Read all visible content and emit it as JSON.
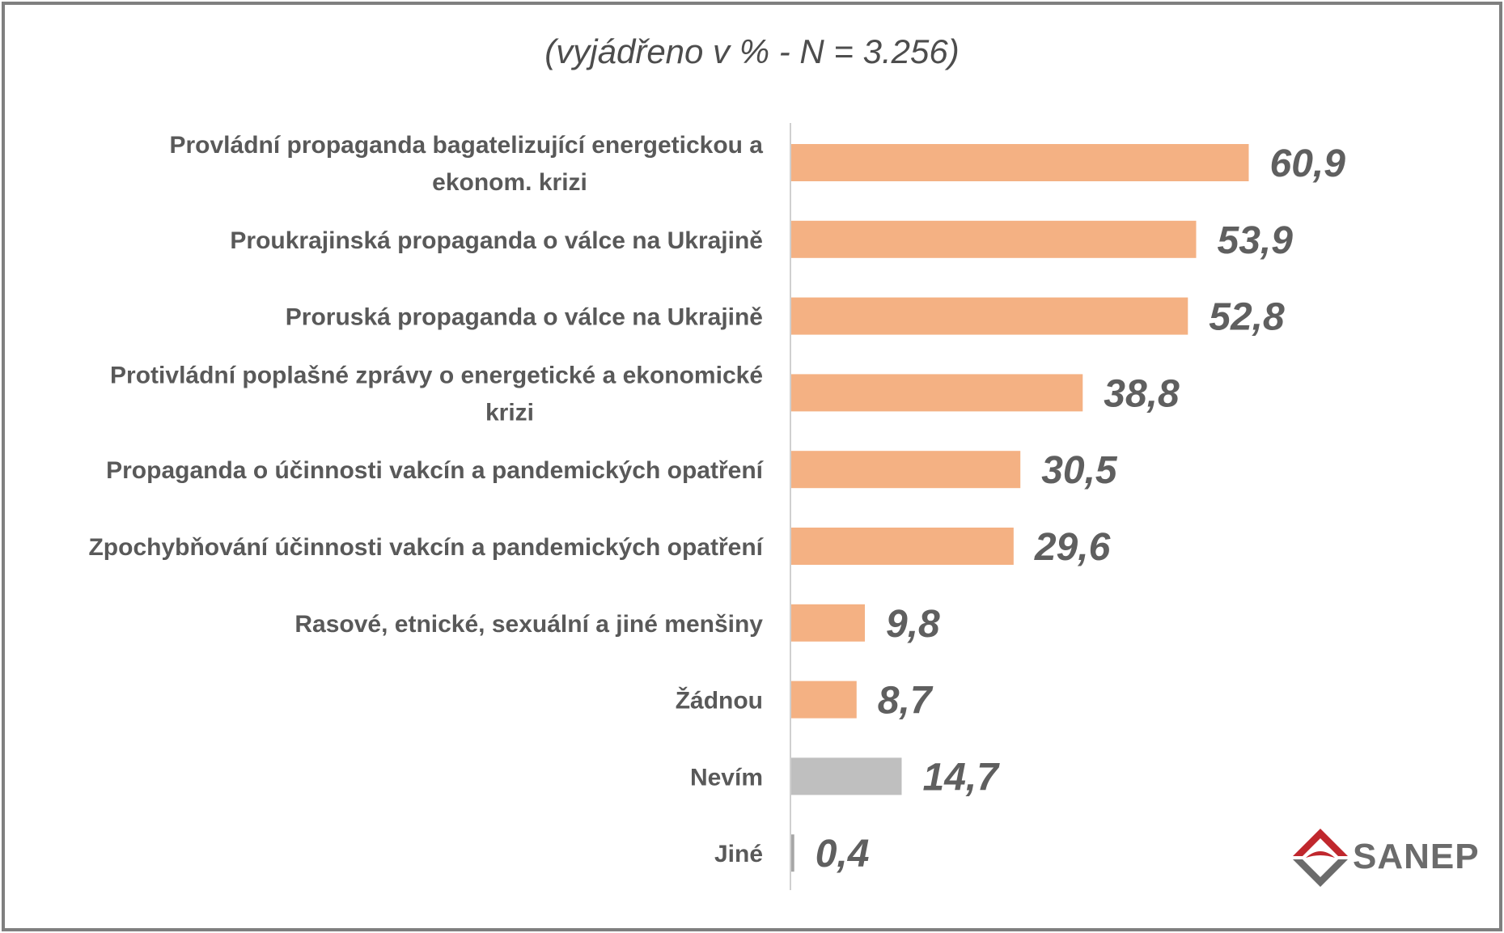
{
  "chart_data": {
    "type": "bar",
    "orientation": "horizontal",
    "subtitle": "(vyjádřeno v % - N = 3.256)",
    "categories": [
      "Provládní propaganda bagatelizující energetickou a ekonom. krizi",
      "Proukrajinská propaganda o válce na Ukrajině",
      "Proruská propaganda o válce na Ukrajině",
      "Protivládní poplašné zprávy o energetické a ekonomické krizi",
      "Propaganda o účinnosti vakcín a pandemických  opatření",
      "Zpochybňování účinnosti vakcín a pandemických opatření",
      "Rasové, etnické, sexuální a jiné menšiny",
      "Žádnou",
      "Nevím",
      "Jiné"
    ],
    "category_lines": [
      [
        "Provládní propaganda bagatelizující energetickou a",
        "ekonom. krizi"
      ],
      [
        "Proukrajinská propaganda o válce na Ukrajině"
      ],
      [
        "Proruská propaganda o válce na Ukrajině"
      ],
      [
        "Protivládní poplašné zprávy o energetické a ekonomické",
        "krizi"
      ],
      [
        "Propaganda o účinnosti vakcín a pandemických  opatření"
      ],
      [
        "Zpochybňování účinnosti vakcín a pandemických opatření"
      ],
      [
        "Rasové, etnické, sexuální a jiné menšiny"
      ],
      [
        "Žádnou"
      ],
      [
        "Nevím"
      ],
      [
        "Jiné"
      ]
    ],
    "values": [
      60.9,
      53.9,
      52.8,
      38.8,
      30.5,
      29.6,
      9.8,
      8.7,
      14.7,
      0.4
    ],
    "value_labels": [
      "60,9",
      "53,9",
      "52,8",
      "38,8",
      "30,5",
      "29,6",
      "9,8",
      "8,7",
      "14,7",
      "0,4"
    ],
    "bar_colors": [
      "#f4b183",
      "#f4b183",
      "#f4b183",
      "#f4b183",
      "#f4b183",
      "#f4b183",
      "#f4b183",
      "#f4b183",
      "#bfbfbf",
      "#a6a6a6"
    ],
    "xlim": [
      0,
      70
    ],
    "grid": false,
    "legend": "none"
  },
  "logo": {
    "text": "SANEP",
    "colors": {
      "red": "#c0272d",
      "gray": "#6b6b6b"
    }
  }
}
